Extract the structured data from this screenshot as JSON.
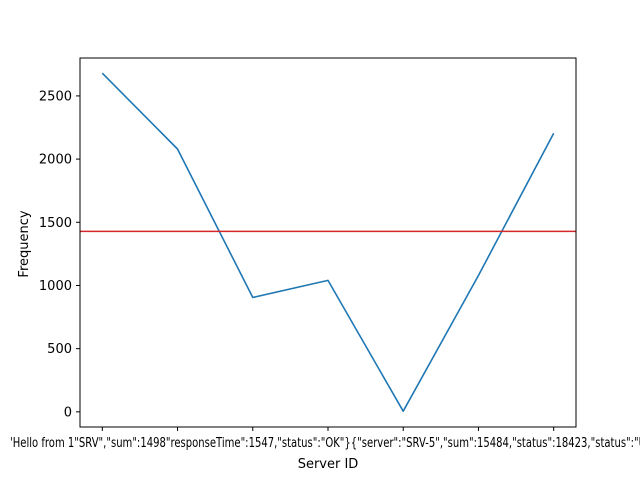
{
  "chart_data": {
    "type": "line",
    "title": "",
    "xlabel": "Server ID",
    "ylabel": "Frequency",
    "x_tick_labels": [
      "'Hello from 1'",
      "\"server\":\"SRV-1\"",
      "1498\",\"responseTime\"",
      "1547\",\"status\":\"OK\"",
      "\"server\":\"SRV-5\"",
      "15484\",\"status\":\"",
      "18423\",\"status\":\"U"
    ],
    "x_tick_label_overlay": "'Hello from 1\"SRV\",\"sum\":1498\"responseTime\":1547,\"status\":\"OK\"}{\"server\":\"SRV-5\",\"sum\":15484,\"status\":18423,\"status\":\"U",
    "values": [
      2680,
      2080,
      905,
      1040,
      5,
      1080,
      2205
    ],
    "y_ticks": [
      0,
      500,
      1000,
      1500,
      2000,
      2500
    ],
    "ylim": [
      -120,
      2800
    ],
    "reference_line": {
      "value": 1428,
      "color": "#d62728"
    },
    "line_color": "#1f77b4",
    "grid": false,
    "legend": "none"
  }
}
